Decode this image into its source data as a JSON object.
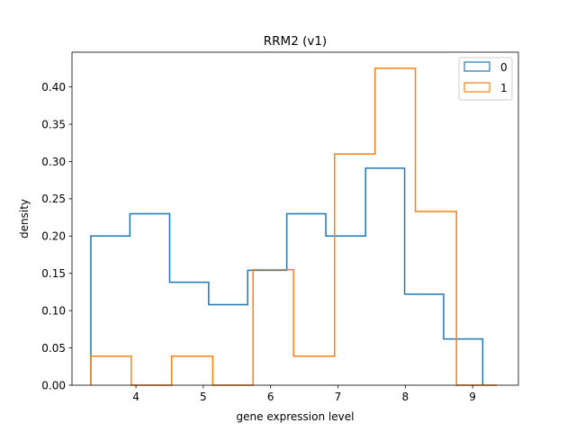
{
  "chart_data": {
    "type": "histogram",
    "title": "RRM2  (v1)",
    "xlabel": "gene expression level",
    "ylabel": "density",
    "xlim": [
      3.05,
      9.68
    ],
    "ylim": [
      0.0,
      0.4466
    ],
    "xticks": [
      4,
      5,
      6,
      7,
      8,
      9
    ],
    "xtick_labels": [
      "4",
      "5",
      "6",
      "7",
      "8",
      "9"
    ],
    "yticks": [
      0.0,
      0.05,
      0.1,
      0.15,
      0.2,
      0.25,
      0.3,
      0.35,
      0.4
    ],
    "ytick_labels": [
      "0.00",
      "0.05",
      "0.10",
      "0.15",
      "0.20",
      "0.25",
      "0.30",
      "0.35",
      "0.40"
    ],
    "grid": false,
    "legend_position": "top-right",
    "histtype": "step",
    "series": [
      {
        "name": "0",
        "color": "#1f77b4",
        "bin_edges": [
          3.33,
          3.91,
          4.5,
          5.08,
          5.66,
          6.24,
          6.82,
          7.41,
          7.99,
          8.57,
          9.15
        ],
        "values": [
          0.2,
          0.23,
          0.138,
          0.108,
          0.154,
          0.23,
          0.2,
          0.291,
          0.122,
          0.062
        ]
      },
      {
        "name": "1",
        "color": "#ff7f0e",
        "bin_edges": [
          3.33,
          3.93,
          4.53,
          5.14,
          5.74,
          6.34,
          6.95,
          7.55,
          8.15,
          8.76,
          9.36
        ],
        "values": [
          0.039,
          0.0,
          0.039,
          0.0,
          0.155,
          0.039,
          0.31,
          0.425,
          0.233,
          0.0
        ]
      }
    ]
  }
}
